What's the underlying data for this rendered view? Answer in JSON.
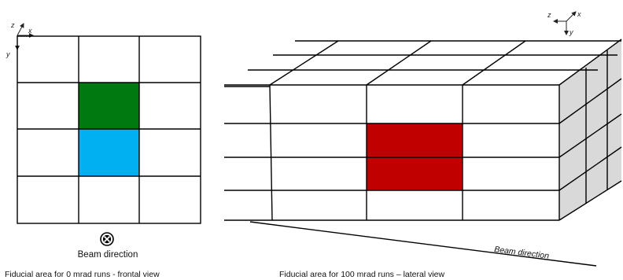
{
  "frontal": {
    "caption": "Fiducial area for 0 mrad runs - frontal view",
    "beam_label": "Beam direction",
    "beam_symbol": "into-page-cross",
    "axes": {
      "z": "z",
      "x": "x",
      "y": "y"
    },
    "grid": {
      "rows": 4,
      "cols": 3
    },
    "highlights": [
      {
        "row": 1,
        "col": 1,
        "color": "#007a10"
      },
      {
        "row": 2,
        "col": 1,
        "color": "#00b0f0"
      }
    ]
  },
  "lateral": {
    "caption": "Fiducial area for 100 mrad runs – lateral view",
    "beam_label": "Beam direction",
    "axes": {
      "z": "z",
      "x": "x",
      "y": "y"
    },
    "highlight_color": "#c00000",
    "side_face_color": "#d9d9d9"
  }
}
